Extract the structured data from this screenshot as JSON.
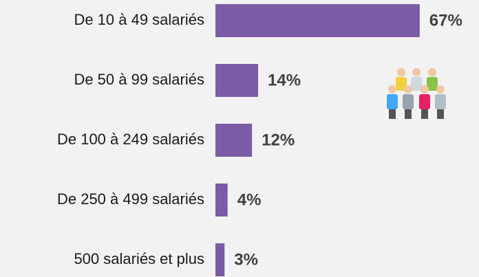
{
  "chart_data": {
    "type": "bar",
    "orientation": "horizontal",
    "categories": [
      "De 10 à 49 salariés",
      "De 50 à 99 salariés",
      "De 100 à 249 salariés",
      "De 250 à 499 salariés",
      "500 salariés et plus"
    ],
    "values": [
      67,
      14,
      12,
      4,
      3
    ],
    "value_labels": [
      "67%",
      "14%",
      "12%",
      "4%",
      "3%"
    ],
    "color": "#7b5aa6"
  }
}
